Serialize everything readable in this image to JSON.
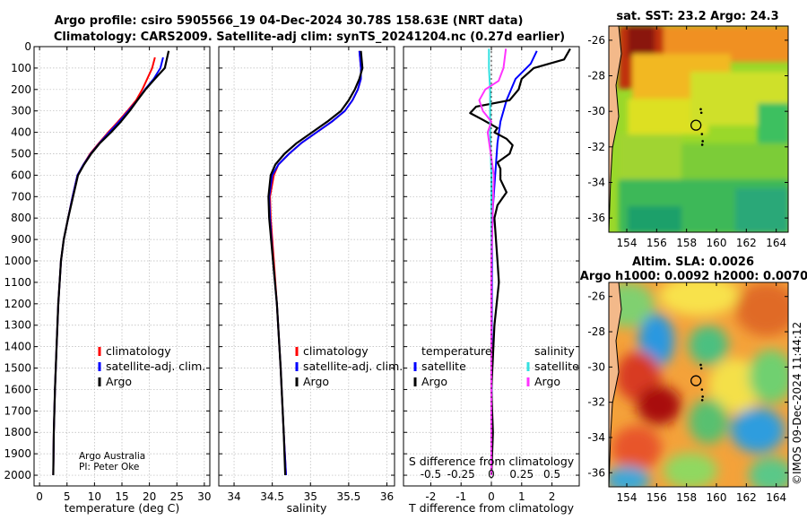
{
  "figure": {
    "title_line1": "Argo profile: csiro 5905566_19 04-Dec-2024 30.78S 158.63E (NRT data)",
    "title_line2": "Climatology: CARS2009. Satellite-adj clim: synTS_20241204.nc (0.27d earlier)",
    "credit_line1": "Argo Australia",
    "credit_line2": "PI: Peter Oke",
    "imos_stamp": "©IMOS 09-Dec-2024 11:44:12"
  },
  "colors": {
    "climatology": "#ff0000",
    "satellite": "#0000ff",
    "argo": "#000000",
    "sat_salinity": "#33e0e0",
    "argo_salinity": "#ff33ff",
    "land": "#f3b98a"
  },
  "chart_data": [
    {
      "id": "temperature",
      "type": "line",
      "xlabel": "temperature (deg C)",
      "ylabel": "",
      "xlim": [
        -1,
        31
      ],
      "ylim": [
        0,
        2050
      ],
      "y_reversed": true,
      "xticks": [
        0,
        5,
        10,
        15,
        20,
        25,
        30
      ],
      "yticks": [
        0,
        100,
        200,
        300,
        400,
        500,
        600,
        700,
        800,
        900,
        1000,
        1100,
        1200,
        1300,
        1400,
        1500,
        1600,
        1700,
        1800,
        1900,
        2000
      ],
      "legend": [
        "climatology",
        "satellite-adj. clim.",
        "Argo"
      ],
      "series": [
        {
          "name": "climatology",
          "color": "#ff0000",
          "x": [
            21.0,
            20.5,
            19.6,
            18.7,
            17.6,
            16.0,
            14.3,
            12.5,
            10.8,
            9.2,
            8.0,
            6.9,
            6.0,
            5.2,
            4.4,
            3.9,
            3.4,
            3.1,
            2.8,
            2.6,
            2.5
          ],
          "y": [
            50,
            100,
            150,
            200,
            250,
            300,
            350,
            400,
            450,
            500,
            550,
            600,
            700,
            800,
            900,
            1000,
            1200,
            1400,
            1600,
            1800,
            2000
          ]
        },
        {
          "name": "satellite-adj. clim.",
          "color": "#0000ff",
          "x": [
            22.5,
            22.0,
            20.8,
            19.2,
            17.8,
            16.2,
            14.5,
            12.7,
            10.9,
            9.3,
            8.0,
            6.9,
            6.0,
            5.2,
            4.4,
            3.9,
            3.4,
            3.1,
            2.8,
            2.6,
            2.5
          ],
          "y": [
            50,
            100,
            150,
            200,
            250,
            300,
            350,
            400,
            450,
            500,
            550,
            600,
            700,
            800,
            900,
            1000,
            1200,
            1400,
            1600,
            1800,
            2000
          ]
        },
        {
          "name": "Argo",
          "color": "#000000",
          "x": [
            23.5,
            22.8,
            21.0,
            19.3,
            17.8,
            16.4,
            14.8,
            13.0,
            11.0,
            9.4,
            8.1,
            7.0,
            6.1,
            5.2,
            4.4,
            3.9,
            3.4,
            3.1,
            2.8,
            2.6,
            2.5
          ],
          "y": [
            20,
            100,
            150,
            200,
            250,
            300,
            350,
            400,
            450,
            500,
            550,
            600,
            700,
            800,
            900,
            1000,
            1200,
            1400,
            1600,
            1800,
            2000
          ]
        }
      ]
    },
    {
      "id": "salinity",
      "type": "line",
      "xlabel": "salinity",
      "ylabel": "",
      "xlim": [
        33.8,
        36.1
      ],
      "ylim": [
        0,
        2050
      ],
      "y_reversed": true,
      "xticks": [
        34,
        34.5,
        35,
        35.5,
        36
      ],
      "xticklabels": [
        "34",
        "34.5",
        "35",
        "35.5",
        "36"
      ],
      "legend": [
        "climatology",
        "satellite-adj. clim.",
        "Argo"
      ],
      "series": [
        {
          "name": "climatology",
          "color": "#ff0000",
          "x": [
            35.64,
            35.66,
            35.66,
            35.62,
            35.55,
            35.45,
            35.28,
            35.08,
            34.88,
            34.72,
            34.58,
            34.52,
            34.47,
            34.48,
            34.52,
            34.56,
            34.61,
            34.65,
            34.68
          ],
          "y": [
            20,
            100,
            150,
            200,
            250,
            300,
            350,
            400,
            450,
            500,
            550,
            600,
            700,
            800,
            1000,
            1200,
            1500,
            1800,
            2000
          ]
        },
        {
          "name": "satellite-adj. clim.",
          "color": "#0000ff",
          "x": [
            35.64,
            35.66,
            35.66,
            35.62,
            35.55,
            35.45,
            35.28,
            35.08,
            34.88,
            34.72,
            34.58,
            34.5,
            34.46,
            34.47,
            34.51,
            34.56,
            34.61,
            34.65,
            34.68
          ],
          "y": [
            20,
            100,
            150,
            200,
            250,
            300,
            350,
            400,
            450,
            500,
            550,
            600,
            700,
            800,
            1000,
            1200,
            1500,
            1800,
            2000
          ]
        },
        {
          "name": "Argo",
          "color": "#000000",
          "x": [
            35.66,
            35.68,
            35.64,
            35.58,
            35.5,
            35.4,
            35.22,
            35.02,
            34.82,
            34.66,
            34.54,
            34.48,
            34.45,
            34.46,
            34.51,
            34.56,
            34.61,
            34.65,
            34.67
          ],
          "y": [
            20,
            100,
            150,
            200,
            250,
            300,
            350,
            400,
            450,
            500,
            550,
            600,
            700,
            800,
            1000,
            1200,
            1500,
            1800,
            2000
          ]
        }
      ]
    },
    {
      "id": "difference",
      "type": "line",
      "xlabel": "T difference from climatology",
      "xlabel_top": "S difference from climatology",
      "ylabel": "",
      "xlim": [
        -2.9,
        2.9
      ],
      "ylim": [
        0,
        2050
      ],
      "y_reversed": true,
      "xticks": [
        -2,
        -1,
        0,
        1,
        2
      ],
      "xticklabels": [
        "-2",
        "-1",
        "0",
        "1",
        "2"
      ],
      "s_xticks": [
        -0.5,
        -0.25,
        0,
        0.25,
        0.5
      ],
      "s_xticklabels": [
        "-0.5",
        "-0.25",
        "0",
        "0.25",
        "0.5"
      ],
      "s_scale_to_t_units": 4,
      "legend_temperature_header": "temperature",
      "legend_salinity_header": "salinity",
      "legend_temperature": [
        "satellite",
        "Argo"
      ],
      "legend_salinity": [
        "satellite",
        "Argo"
      ],
      "series": [
        {
          "name": "T satellite",
          "color": "#0000ff",
          "x": [
            1.5,
            1.3,
            0.8,
            0.5,
            0.3,
            0.2,
            0.15,
            0.1,
            0.05,
            0.02,
            0.0
          ],
          "y": [
            20,
            80,
            150,
            250,
            350,
            450,
            550,
            650,
            750,
            900,
            2000
          ]
        },
        {
          "name": "T Argo",
          "color": "#000000",
          "x": [
            2.6,
            2.4,
            1.4,
            1.0,
            0.9,
            0.6,
            -0.5,
            -0.7,
            -0.3,
            0.2,
            0.1,
            0.5,
            0.7,
            0.6,
            0.2,
            0.3,
            0.3,
            0.5,
            0.2,
            0.1,
            0.15,
            0.2,
            0.25,
            0.1,
            0.0,
            0.05,
            0.0
          ],
          "y": [
            10,
            60,
            100,
            150,
            200,
            250,
            280,
            310,
            340,
            380,
            400,
            430,
            460,
            500,
            540,
            570,
            620,
            680,
            740,
            800,
            900,
            1000,
            1100,
            1300,
            1600,
            1800,
            2000
          ]
        },
        {
          "name": "S satellite",
          "color": "#33e0e0",
          "x": [
            -0.02,
            -0.02,
            -0.01,
            -0.01,
            -0.01,
            0.0,
            0.0,
            0.0,
            0.0,
            0.0
          ],
          "y": [
            10,
            100,
            200,
            300,
            400,
            600,
            800,
            1200,
            1600,
            2000
          ]
        },
        {
          "name": "S Argo",
          "color": "#ff33ff",
          "x": [
            0.12,
            0.1,
            0.06,
            -0.05,
            -0.1,
            -0.07,
            0.0,
            -0.03,
            0.02,
            0.0,
            0.0,
            0.0
          ],
          "y": [
            10,
            100,
            160,
            200,
            250,
            300,
            350,
            400,
            600,
            1000,
            1500,
            2000
          ]
        }
      ]
    },
    {
      "id": "sst_map",
      "type": "heatmap",
      "title": "sat. SST: 23.2 Argo: 24.3",
      "xticks": [
        154,
        156,
        158,
        160,
        162,
        164
      ],
      "xticklabels": [
        "154",
        "156",
        "158",
        "160",
        "162",
        "164"
      ],
      "yticks": [
        -26,
        -28,
        -30,
        -32,
        -34,
        -36
      ],
      "yticklabels": [
        "-26",
        "-28",
        "-30",
        "-32",
        "-34",
        "-36"
      ],
      "xlim": [
        152.8,
        164.8
      ],
      "ylim": [
        -36.8,
        -25.2
      ],
      "float_position": {
        "lon": 158.63,
        "lat": -30.78
      }
    },
    {
      "id": "sla_map",
      "type": "heatmap",
      "title": "Altim. SLA: 0.0026",
      "subtitle": "Argo h1000: 0.0092 h2000: 0.0070",
      "xticks": [
        154,
        156,
        158,
        160,
        162,
        164
      ],
      "xticklabels": [
        "154",
        "156",
        "158",
        "160",
        "162",
        "164"
      ],
      "yticks": [
        -26,
        -28,
        -30,
        -32,
        -34,
        -36
      ],
      "yticklabels": [
        "-26",
        "-28",
        "-30",
        "-32",
        "-34",
        "-36"
      ],
      "xlim": [
        152.8,
        164.8
      ],
      "ylim": [
        -36.8,
        -25.2
      ],
      "float_position": {
        "lon": 158.63,
        "lat": -30.78
      }
    }
  ]
}
